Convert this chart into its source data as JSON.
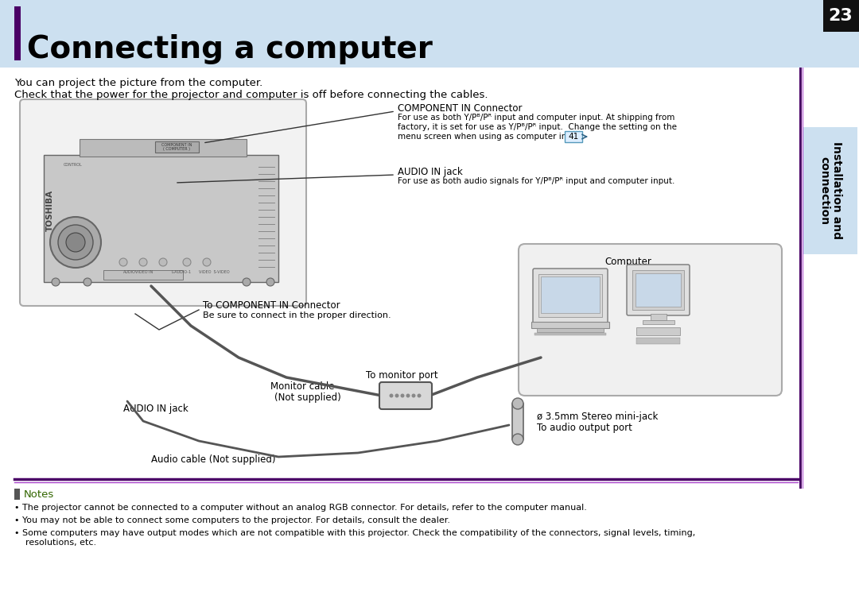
{
  "title": "Connecting a computer",
  "page_number": "23",
  "header_bg": "#cce0f0",
  "header_title_color": "#000000",
  "sidebar_bg": "#cce0f0",
  "sidebar_text": "Installation and\nconnection",
  "sidebar_text_color": "#000000",
  "purple_accent": "#4a0066",
  "purple_border": "#6600aa",
  "intro_line1": "You can project the picture from the computer.",
  "intro_line2": "Check that the power for the projector and computer is off before connecting the cables.",
  "label_component_in": "COMPONENT IN Connector",
  "label_component_in_desc1": "For use as both Y/Pᴮ/Pᴿ input and computer input. At shipping from",
  "label_component_in_desc2": "factory, it is set for use as Y/Pᴮ/Pᴿ input.  Change the setting on the",
  "label_component_in_desc3": "menu screen when using as computer input.",
  "label_num_41": "41",
  "label_audio_in": "AUDIO IN jack",
  "label_audio_in_desc": "For use as both audio signals for Y/Pᴮ/Pᴿ input and computer input.",
  "label_component_connector": "To COMPONENT IN Connector",
  "label_component_connector2": "Be sure to connect in the proper direction.",
  "label_computer": "Computer",
  "label_monitor_cable": "Monitor cable",
  "label_not_supplied": "(Not supplied)",
  "label_monitor_port": "To monitor port",
  "label_audio_in_jack": "AUDIO IN jack",
  "label_audio_cable": "Audio cable (Not supplied)",
  "label_stereo": "ø 3.5mm Stereo mini-jack",
  "label_audio_port": "To audio output port",
  "notes_title": "Notes",
  "note1": "The projector cannot be connected to a computer without an analog RGB connector. For details, refer to the computer manual.",
  "note2": "You may not be able to connect some computers to the projector. For details, consult the dealer.",
  "note3": "Some computers may have output modes which are not compatible with this projector. Check the compatibility of the connectors, signal levels, timing,\n    resolutions, etc.",
  "notes_color": "#336600",
  "bg_color": "#ffffff"
}
